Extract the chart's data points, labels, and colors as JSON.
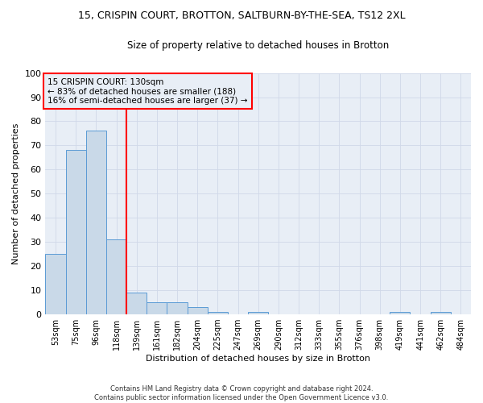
{
  "title1": "15, CRISPIN COURT, BROTTON, SALTBURN-BY-THE-SEA, TS12 2XL",
  "title2": "Size of property relative to detached houses in Brotton",
  "xlabel": "Distribution of detached houses by size in Brotton",
  "ylabel": "Number of detached properties",
  "footer1": "Contains HM Land Registry data © Crown copyright and database right 2024.",
  "footer2": "Contains public sector information licensed under the Open Government Licence v3.0.",
  "annotation_line1": "15 CRISPIN COURT: 130sqm",
  "annotation_line2": "← 83% of detached houses are smaller (188)",
  "annotation_line3": "16% of semi-detached houses are larger (37) →",
  "categories": [
    "53sqm",
    "75sqm",
    "96sqm",
    "118sqm",
    "139sqm",
    "161sqm",
    "182sqm",
    "204sqm",
    "225sqm",
    "247sqm",
    "269sqm",
    "290sqm",
    "312sqm",
    "333sqm",
    "355sqm",
    "376sqm",
    "398sqm",
    "419sqm",
    "441sqm",
    "462sqm",
    "484sqm"
  ],
  "values": [
    25,
    68,
    76,
    31,
    9,
    5,
    5,
    3,
    1,
    0,
    1,
    0,
    0,
    0,
    0,
    0,
    0,
    1,
    0,
    1,
    0
  ],
  "bar_color": "#c9d9e8",
  "bar_edge_color": "#5b9bd5",
  "grid_color": "#d0d8e8",
  "vline_color": "red",
  "annotation_box_color": "red",
  "ylim": [
    0,
    100
  ],
  "bg_color": "#ffffff",
  "plot_bg_color": "#e8eef6"
}
